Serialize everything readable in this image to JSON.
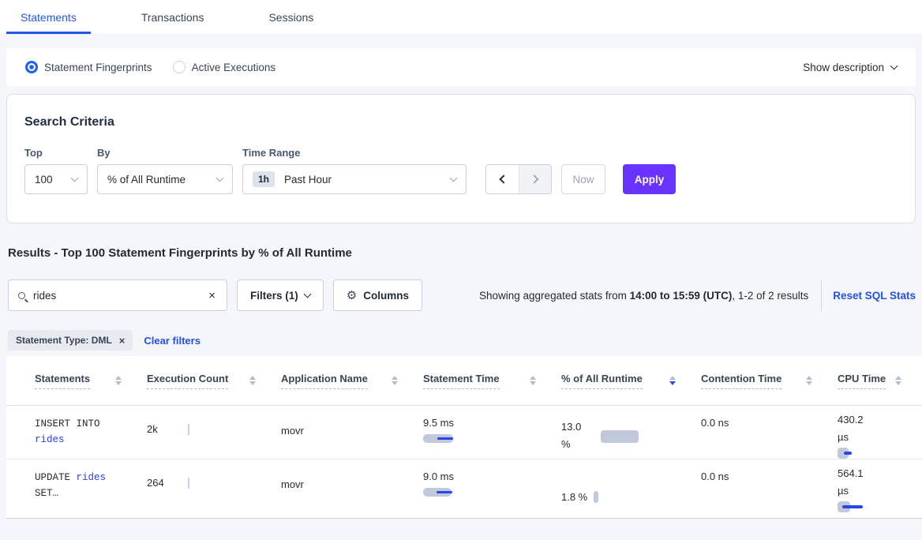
{
  "tabs": [
    {
      "label": "Statements",
      "active": true
    },
    {
      "label": "Transactions",
      "active": false
    },
    {
      "label": "Sessions",
      "active": false
    }
  ],
  "view_toggle": {
    "options": [
      {
        "label": "Statement Fingerprints",
        "selected": true
      },
      {
        "label": "Active Executions",
        "selected": false
      }
    ],
    "show_description_label": "Show description"
  },
  "search_criteria": {
    "title": "Search Criteria",
    "top": {
      "label": "Top",
      "value": "100"
    },
    "by": {
      "label": "By",
      "value": "% of All Runtime"
    },
    "time_range": {
      "label": "Time Range",
      "badge": "1h",
      "value": "Past Hour"
    },
    "now_label": "Now",
    "apply_label": "Apply"
  },
  "results": {
    "heading": "Results - Top 100 Statement Fingerprints by % of All Runtime",
    "search_value": "rides",
    "clear_icon": "×",
    "filters_label": "Filters (1)",
    "columns_label": "Columns",
    "gear_icon": "⚙",
    "stats_prefix": "Showing aggregated stats from ",
    "stats_range": "14:00 to 15:59 (UTC)",
    "stats_suffix": ", 1-2 of 2 results",
    "reset_label": "Reset SQL Stats",
    "filter_chip": "Statement Type: DML",
    "chip_close_icon": "×",
    "clear_filters_label": "Clear filters"
  },
  "table": {
    "columns": [
      "Statements",
      "Execution Count",
      "Application Name",
      "Statement Time",
      "% of All Runtime",
      "Contention Time",
      "CPU Time"
    ],
    "sorted_column": "% of All Runtime",
    "sort_direction": "desc",
    "rows": [
      {
        "stmt_keyword": "INSERT INTO ",
        "stmt_link": "rides",
        "stmt_suffix": "",
        "execution_count": "2k",
        "app_name": "movr",
        "statement_time": "9.5 ms",
        "runtime_pct": "13.0 %",
        "contention_time": "0.0 ns",
        "cpu_time": "430.2 µs",
        "bars": {
          "time_grey": 38,
          "time_blue": 20,
          "runtime_grey": 48,
          "cpu_grey": 14,
          "cpu_blue": 10
        }
      },
      {
        "stmt_keyword": "UPDATE ",
        "stmt_link": "rides",
        "stmt_suffix": " SET…",
        "execution_count": "264",
        "app_name": "movr",
        "statement_time": "9.0 ms",
        "runtime_pct": "1.8 %",
        "contention_time": "0.0 ns",
        "cpu_time": "564.1 µs",
        "bars": {
          "time_grey": 36,
          "time_blue": 20,
          "runtime_grey": 6,
          "cpu_grey": 16,
          "cpu_blue": 26
        }
      }
    ]
  },
  "colors": {
    "accent_blue": "#2450e8",
    "apply_purple": "#6933ff",
    "bar_grey": "#c1c8db",
    "bar_blue": "#2547e8"
  }
}
